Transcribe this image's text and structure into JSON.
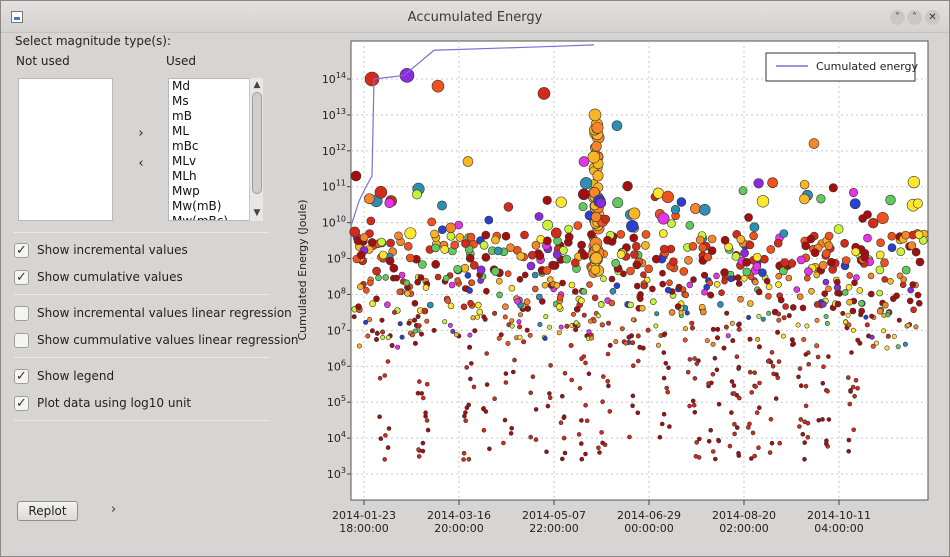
{
  "window": {
    "title": "Accumulated Energy"
  },
  "titlebar_buttons": [
    "˅",
    "˄",
    "✕"
  ],
  "left": {
    "select_label": "Select magnitude type(s):",
    "not_used_label": "Not used",
    "used_label": "Used",
    "used_items": [
      "Md",
      "Ms",
      "mB",
      "ML",
      "mBc",
      "MLv",
      "MLh",
      "Mwp",
      "Mw(mB)",
      "Mw(mBc)"
    ],
    "move_right": "›",
    "move_left": "‹",
    "checkboxes": [
      {
        "label": "Show incremental values",
        "checked": true
      },
      {
        "label": "Show cumulative values",
        "checked": true
      },
      {
        "label": "Show incremental values linear regression",
        "checked": false
      },
      {
        "label": "Show cummulative values linear regression",
        "checked": false
      },
      {
        "label": "Show legend",
        "checked": true
      },
      {
        "label": "Plot data using log10 unit",
        "checked": true
      }
    ],
    "check_glyph": "✓",
    "replot_label": "Replot",
    "expand_chevron": "›"
  },
  "chart_data": {
    "type": "scatter",
    "ylabel": "Cumulated Energy (Joule)",
    "yscale": "log10",
    "yticks": [
      3,
      4,
      5,
      6,
      7,
      8,
      9,
      10,
      11,
      12,
      13,
      14
    ],
    "xticks": [
      {
        "date": "2014-01-23",
        "time": "18:00:00"
      },
      {
        "date": "2014-03-16",
        "time": "20:00:00"
      },
      {
        "date": "2014-05-07",
        "time": "22:00:00"
      },
      {
        "date": "2014-06-29",
        "time": "00:00:00"
      },
      {
        "date": "2014-08-20",
        "time": "02:00:00"
      },
      {
        "date": "2014-10-11",
        "time": "04:00:00"
      }
    ],
    "legend": {
      "position": "top-right",
      "entries": [
        {
          "name": "Cumulated energy",
          "color": "#7b72d6"
        }
      ]
    },
    "grid": true,
    "cumulative_line_color": "#7b72d6",
    "marker_palette": [
      "#a50e0e",
      "#d42a1a",
      "#f0521e",
      "#f7862a",
      "#f9b523",
      "#fde62e",
      "#c6f23a",
      "#62c95e",
      "#2f8fb3",
      "#2b3fd1",
      "#8c2bdc",
      "#e436e8"
    ]
  }
}
